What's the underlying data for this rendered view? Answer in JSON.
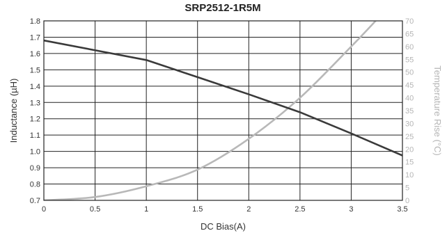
{
  "chart_data": {
    "type": "line",
    "title": "SRP2512-1R5M",
    "xlabel": "DC Bias(A)",
    "ylabel": "Inductance (µH)",
    "y2label": "Temperature Rise (°C)",
    "xlim": [
      0,
      3.5
    ],
    "ylim": [
      0.7,
      1.8
    ],
    "y2lim": [
      0,
      70
    ],
    "x_ticks": [
      0,
      0.5,
      1,
      1.5,
      2,
      2.5,
      3,
      3.5
    ],
    "x_tick_labels": [
      "0",
      "0.5",
      "1",
      "1.5",
      "2",
      "2.5",
      "3",
      "3.5"
    ],
    "y_ticks": [
      0.7,
      0.8,
      0.9,
      1.0,
      1.1,
      1.2,
      1.3,
      1.4,
      1.5,
      1.6,
      1.7,
      1.8
    ],
    "y_tick_labels": [
      "0.7",
      "0.8",
      "0.9",
      "1.0",
      "1.1",
      "1.2",
      "1.3",
      "1.4",
      "1.5",
      "1.6",
      "1.7",
      "1.8"
    ],
    "y2_ticks": [
      0,
      5,
      10,
      15,
      20,
      25,
      30,
      35,
      40,
      45,
      50,
      55,
      60,
      65,
      70
    ],
    "y2_tick_labels": [
      "0",
      "5",
      "10",
      "15",
      "20",
      "25",
      "30",
      "35",
      "40",
      "45",
      "50",
      "55",
      "60",
      "65",
      "70"
    ],
    "grid": true,
    "series": [
      {
        "axis": "left",
        "color": "#3a3a3a",
        "x": [
          0,
          0.5,
          1,
          1.5,
          2,
          2.5,
          3,
          3.5
        ],
        "values": [
          1.68,
          1.62,
          1.56,
          1.455,
          1.35,
          1.24,
          1.11,
          0.975
        ]
      },
      {
        "axis": "right",
        "color": "#b8b8b8",
        "x": [
          0,
          0.5,
          1,
          1.5,
          2,
          2.5,
          3,
          3.25
        ],
        "values": [
          0,
          1.3,
          5.5,
          12,
          24,
          40,
          60,
          70.5
        ]
      }
    ]
  }
}
